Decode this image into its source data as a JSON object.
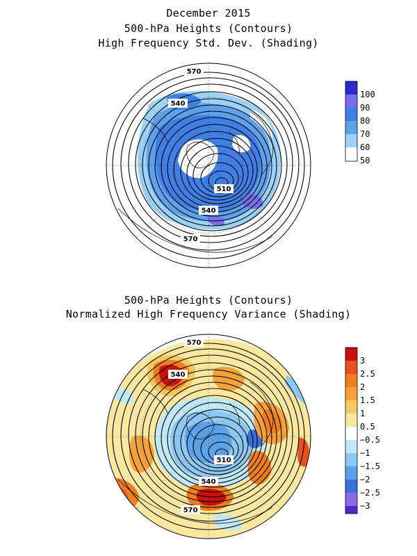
{
  "top_panel": {
    "title_lines": [
      "December 2015",
      "500-hPa Heights (Contours)",
      "High Frequency Std. Dev. (Shading)"
    ],
    "contour_labels": [
      "570",
      "540",
      "510",
      "540",
      "570"
    ],
    "colorbar": {
      "labels": [
        "100",
        "90",
        "80",
        "70",
        "60",
        "50"
      ],
      "colors": [
        "#2a2ad0",
        "#7a6cf0",
        "#3f7fe6",
        "#5ea2ee",
        "#9cd2f8",
        "#ffffff"
      ]
    }
  },
  "bottom_panel": {
    "title_lines": [
      "500-hPa Heights (Contours)",
      "Normalized High Frequency Variance (Shading)"
    ],
    "contour_labels": [
      "570",
      "540",
      "510",
      "540",
      "570"
    ],
    "colorbar": {
      "labels": [
        "3",
        "2.5",
        "2",
        "1.5",
        "1",
        "0.5",
        "−0.5",
        "−1",
        "−1.5",
        "−2",
        "−2.5",
        "−3"
      ],
      "colors": [
        "#c81010",
        "#e8501c",
        "#f07e1e",
        "#f5a23a",
        "#f8c860",
        "#fbe8a0",
        "#ffffff",
        "#bfe8f8",
        "#8cc8f2",
        "#5aa2ea",
        "#3a70da",
        "#8a6ae8",
        "#4a2ac8"
      ]
    }
  }
}
